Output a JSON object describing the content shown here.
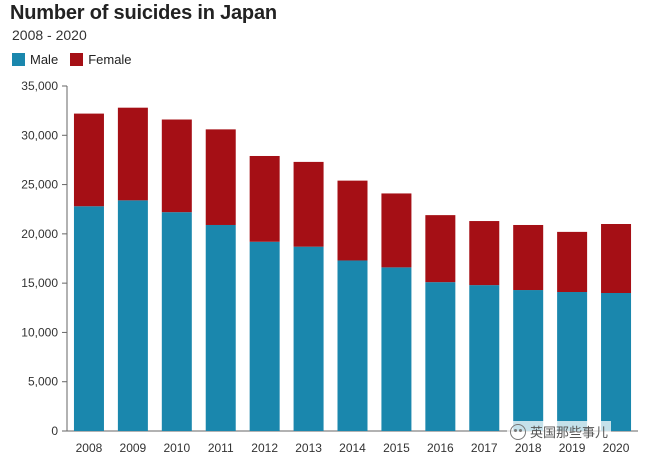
{
  "chart_data": {
    "type": "bar",
    "stacked": true,
    "title": "Number of suicides in Japan",
    "subtitle": "2008 - 2020",
    "categories": [
      "2008",
      "2009",
      "2010",
      "2011",
      "2012",
      "2013",
      "2014",
      "2015",
      "2016",
      "2017",
      "2018",
      "2019",
      "2020"
    ],
    "series": [
      {
        "name": "Male",
        "color": "#1a87ad",
        "values": [
          22800,
          23400,
          22200,
          20900,
          19200,
          18700,
          17300,
          16600,
          15100,
          14800,
          14300,
          14100,
          14000
        ]
      },
      {
        "name": "Female",
        "color": "#a50f15",
        "values": [
          9400,
          9400,
          9400,
          9700,
          8700,
          8600,
          8100,
          7500,
          6800,
          6500,
          6600,
          6100,
          7000
        ]
      }
    ],
    "ylim": [
      0,
      35000
    ],
    "yticks": [
      0,
      5000,
      10000,
      15000,
      20000,
      25000,
      30000,
      35000
    ],
    "ytick_labels": [
      "0",
      "5,000",
      "10,000",
      "15,000",
      "20,000",
      "25,000",
      "30,000",
      "35,000"
    ],
    "xlabel": "",
    "ylabel": "",
    "grid": false,
    "legend_position": "top-left"
  },
  "watermark": {
    "text": "英国那些事儿",
    "icon": "wechat-icon"
  }
}
